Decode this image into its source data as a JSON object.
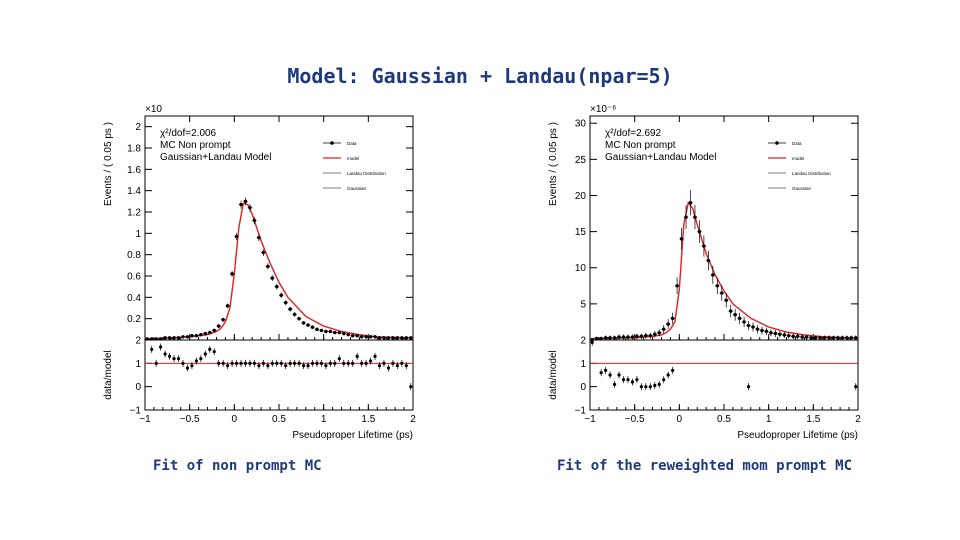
{
  "title": "Model: Gaussian + Landau(npar=5)",
  "captions": {
    "left": "Fit of non prompt MC",
    "right": "Fit of the reweighted mom prompt MC"
  },
  "chart_data": [
    {
      "type": "scatter",
      "title": "",
      "xlabel": "Pseudoproper Lifetime  (ps)",
      "ylabel": "Events / ( 0.05 ps )",
      "ratio_ylabel": "data/model",
      "exponent_label": "×10",
      "xlim": [
        -1,
        2
      ],
      "ylim": [
        0,
        2.1
      ],
      "ratio_ylim": [
        -1,
        2
      ],
      "x_ticks": [
        "−1",
        "−0.5",
        "0",
        "0.5",
        "1",
        "1.5",
        "2"
      ],
      "y_ticks": [
        "0.2",
        "0.4",
        "0.6",
        "0.8",
        "1",
        "1.2",
        "1.4",
        "1.6",
        "1.8",
        "2"
      ],
      "y_tick_values": [
        0.2,
        0.4,
        0.6,
        0.8,
        1,
        1.2,
        1.4,
        1.6,
        1.8,
        2
      ],
      "ratio_ticks": [
        "−1",
        "0",
        "1",
        "2"
      ],
      "ratio_tick_values": [
        -1,
        0,
        1,
        2
      ],
      "info": [
        "χ²/dof=2.006",
        "MC Non prompt",
        "Gaussian+Landau Model"
      ],
      "legend": [
        "Data",
        "model",
        "Landau Distribution",
        "Gaussian"
      ],
      "legend_position": "top-right",
      "model_color": "#e02020",
      "series": [
        {
          "name": "Data",
          "x": [
            -0.975,
            -0.925,
            -0.875,
            -0.825,
            -0.775,
            -0.725,
            -0.675,
            -0.625,
            -0.575,
            -0.525,
            -0.475,
            -0.425,
            -0.375,
            -0.325,
            -0.275,
            -0.225,
            -0.175,
            -0.125,
            -0.075,
            -0.025,
            0.025,
            0.075,
            0.125,
            0.175,
            0.225,
            0.275,
            0.325,
            0.375,
            0.425,
            0.475,
            0.525,
            0.575,
            0.625,
            0.675,
            0.725,
            0.775,
            0.825,
            0.875,
            0.925,
            0.975,
            1.025,
            1.075,
            1.125,
            1.175,
            1.225,
            1.275,
            1.325,
            1.375,
            1.425,
            1.475,
            1.525,
            1.575,
            1.625,
            1.675,
            1.725,
            1.775,
            1.825,
            1.875,
            1.925,
            1.975
          ],
          "values": [
            0.01,
            0.01,
            0.01,
            0.01,
            0.02,
            0.02,
            0.02,
            0.02,
            0.03,
            0.03,
            0.04,
            0.04,
            0.05,
            0.06,
            0.07,
            0.09,
            0.13,
            0.19,
            0.32,
            0.62,
            0.97,
            1.27,
            1.3,
            1.24,
            1.12,
            0.96,
            0.82,
            0.69,
            0.58,
            0.5,
            0.42,
            0.35,
            0.29,
            0.24,
            0.2,
            0.16,
            0.14,
            0.12,
            0.1,
            0.09,
            0.08,
            0.08,
            0.07,
            0.07,
            0.06,
            0.05,
            0.04,
            0.04,
            0.03,
            0.03,
            0.03,
            0.03,
            0.02,
            0.02,
            0.02,
            0.02,
            0.02,
            0.02,
            0.02,
            0.02
          ]
        },
        {
          "name": "model",
          "x": [
            -1,
            -0.5,
            -0.3,
            -0.2,
            -0.15,
            -0.1,
            -0.05,
            0,
            0.05,
            0.1,
            0.15,
            0.2,
            0.3,
            0.4,
            0.5,
            0.6,
            0.8,
            1,
            1.2,
            1.4,
            1.6,
            2
          ],
          "values": [
            0.01,
            0.03,
            0.05,
            0.08,
            0.11,
            0.17,
            0.3,
            0.62,
            1.05,
            1.28,
            1.27,
            1.18,
            0.93,
            0.72,
            0.54,
            0.4,
            0.22,
            0.13,
            0.08,
            0.05,
            0.03,
            0.02
          ]
        }
      ],
      "ratio": {
        "x": [
          -0.925,
          -0.875,
          -0.825,
          -0.775,
          -0.725,
          -0.675,
          -0.625,
          -0.575,
          -0.525,
          -0.475,
          -0.425,
          -0.375,
          -0.325,
          -0.275,
          -0.225,
          -0.175,
          -0.125,
          -0.075,
          -0.025,
          0.025,
          0.075,
          0.125,
          0.175,
          0.225,
          0.275,
          0.325,
          0.375,
          0.425,
          0.475,
          0.525,
          0.575,
          0.625,
          0.675,
          0.725,
          0.775,
          0.825,
          0.875,
          0.925,
          0.975,
          1.025,
          1.075,
          1.125,
          1.175,
          1.225,
          1.275,
          1.325,
          1.375,
          1.425,
          1.475,
          1.525,
          1.575,
          1.625,
          1.675,
          1.725,
          1.775,
          1.825,
          1.875,
          1.925,
          1.975
        ],
        "values": [
          1.6,
          1.0,
          1.7,
          1.4,
          1.3,
          1.2,
          1.2,
          1.0,
          0.8,
          0.9,
          1.1,
          1.2,
          1.4,
          1.6,
          1.5,
          1.0,
          1.0,
          0.9,
          1.0,
          1.0,
          1.0,
          1.0,
          1.0,
          1.0,
          0.9,
          1.0,
          0.9,
          1.0,
          1.0,
          1.0,
          0.9,
          1.0,
          1.0,
          1.0,
          0.9,
          0.9,
          1.0,
          1.0,
          1.0,
          0.9,
          1.0,
          1.0,
          1.2,
          1.0,
          1.0,
          1.0,
          1.3,
          1.0,
          1.0,
          1.1,
          1.3,
          0.9,
          1.0,
          0.8,
          1.0,
          0.9,
          1.0,
          0.9,
          0.0
        ],
        "reference": 1
      }
    },
    {
      "type": "scatter",
      "title": "",
      "xlabel": "Pseudoproper Lifetime  (ps)",
      "ylabel": "Events / ( 0.05 ps )",
      "ratio_ylabel": "data/model",
      "exponent_label": "×10⁻⁶",
      "xlim": [
        -1,
        2
      ],
      "ylim": [
        0,
        31
      ],
      "ratio_ylim": [
        -1,
        2
      ],
      "x_ticks": [
        "−1",
        "−0.5",
        "0",
        "0.5",
        "1",
        "1.5",
        "2"
      ],
      "y_ticks": [
        "5",
        "10",
        "15",
        "20",
        "25",
        "30"
      ],
      "y_tick_values": [
        5,
        10,
        15,
        20,
        25,
        30
      ],
      "ratio_ticks": [
        "−1",
        "0",
        "1",
        "2"
      ],
      "ratio_tick_values": [
        -1,
        0,
        1,
        2
      ],
      "info": [
        "χ²/dof=2.692",
        "MC Non prompt",
        "Gaussian+Landau Model"
      ],
      "legend": [
        "Data",
        "model",
        "Landau Distribution",
        "Gaussian"
      ],
      "legend_position": "top-right",
      "model_color": "#e02020",
      "series": [
        {
          "name": "Data",
          "x": [
            -0.975,
            -0.925,
            -0.875,
            -0.825,
            -0.775,
            -0.725,
            -0.675,
            -0.625,
            -0.575,
            -0.525,
            -0.475,
            -0.425,
            -0.375,
            -0.325,
            -0.275,
            -0.225,
            -0.175,
            -0.125,
            -0.075,
            -0.025,
            0.025,
            0.075,
            0.125,
            0.175,
            0.225,
            0.275,
            0.325,
            0.375,
            0.425,
            0.475,
            0.525,
            0.575,
            0.625,
            0.675,
            0.725,
            0.775,
            0.825,
            0.875,
            0.925,
            0.975,
            1.025,
            1.075,
            1.125,
            1.175,
            1.225,
            1.275,
            1.325,
            1.375,
            1.425,
            1.475,
            1.525,
            1.575,
            1.625,
            1.675,
            1.725,
            1.775,
            1.825,
            1.875,
            1.925,
            1.975
          ],
          "values": [
            0.0,
            0.2,
            0.2,
            0.3,
            0.3,
            0.3,
            0.4,
            0.4,
            0.4,
            0.4,
            0.5,
            0.5,
            0.6,
            0.6,
            0.8,
            1.0,
            1.5,
            2.2,
            3.0,
            7.5,
            14.0,
            17.0,
            19.0,
            17.0,
            15.0,
            13.0,
            11.0,
            9.0,
            7.5,
            6.5,
            5.5,
            4.0,
            3.5,
            3.0,
            2.5,
            2.0,
            1.8,
            1.5,
            1.3,
            1.2,
            1.0,
            0.9,
            0.8,
            0.7,
            0.6,
            0.5,
            0.5,
            0.4,
            0.4,
            0.3,
            0.3,
            0.3,
            0.3,
            0.3,
            0.3,
            0.3,
            0.3,
            0.3,
            0.3,
            0.3
          ]
        },
        {
          "name": "model",
          "x": [
            -1,
            -0.5,
            -0.3,
            -0.2,
            -0.15,
            -0.1,
            -0.05,
            0,
            0.05,
            0.1,
            0.15,
            0.2,
            0.3,
            0.4,
            0.5,
            0.6,
            0.8,
            1,
            1.2,
            1.4,
            1.6,
            2
          ],
          "values": [
            0.2,
            0.3,
            0.5,
            0.7,
            1.0,
            1.5,
            2.5,
            7.0,
            16.0,
            19.0,
            18.2,
            16.0,
            12.0,
            9.0,
            6.8,
            5.0,
            3.0,
            1.8,
            1.1,
            0.7,
            0.45,
            0.25
          ]
        }
      ],
      "ratio": {
        "x": [
          -0.975,
          -0.875,
          -0.825,
          -0.775,
          -0.725,
          -0.675,
          -0.625,
          -0.575,
          -0.525,
          -0.475,
          -0.425,
          -0.375,
          -0.325,
          -0.275,
          -0.225,
          -0.175,
          -0.125,
          -0.075,
          0.775,
          1.975
        ],
        "values": [
          1.9,
          0.6,
          0.7,
          0.5,
          0.1,
          0.5,
          0.3,
          0.3,
          0.2,
          0.3,
          0.0,
          0.0,
          0.0,
          0.05,
          0.1,
          0.3,
          0.5,
          0.7,
          0.0,
          0.0
        ],
        "reference": 1
      }
    }
  ]
}
